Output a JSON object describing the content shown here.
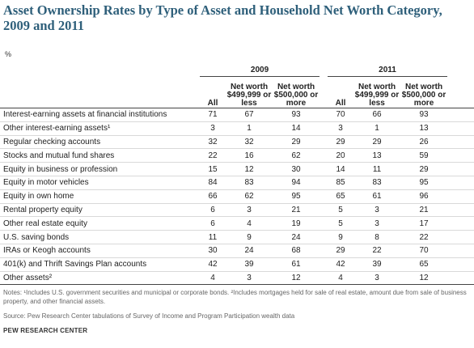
{
  "title": "Asset Ownership Rates by Type of Asset and Household Net Worth Category, 2009 and 2011",
  "unit": "%",
  "years": [
    "2009",
    "2011"
  ],
  "columns": [
    "All",
    "Net worth $499,999 or less",
    "Net worth $500,000 or more"
  ],
  "rows": [
    {
      "label": "Interest-earning assets at financial institutions",
      "values": [
        "71",
        "67",
        "93",
        "70",
        "66",
        "93"
      ]
    },
    {
      "label": "Other interest-earning assets¹",
      "values": [
        "3",
        "1",
        "14",
        "3",
        "1",
        "13"
      ]
    },
    {
      "label": "Regular checking accounts",
      "values": [
        "32",
        "32",
        "29",
        "29",
        "29",
        "26"
      ]
    },
    {
      "label": "Stocks and mutual fund shares",
      "values": [
        "22",
        "16",
        "62",
        "20",
        "13",
        "59"
      ]
    },
    {
      "label": "Equity in business or profession",
      "values": [
        "15",
        "12",
        "30",
        "14",
        "11",
        "29"
      ]
    },
    {
      "label": "Equity in motor vehicles",
      "values": [
        "84",
        "83",
        "94",
        "85",
        "83",
        "95"
      ]
    },
    {
      "label": "Equity in own home",
      "values": [
        "66",
        "62",
        "95",
        "65",
        "61",
        "96"
      ]
    },
    {
      "label": "Rental property equity",
      "values": [
        "6",
        "3",
        "21",
        "5",
        "3",
        "21"
      ]
    },
    {
      "label": "Other real estate equity",
      "values": [
        "6",
        "4",
        "19",
        "5",
        "3",
        "17"
      ]
    },
    {
      "label": "U.S. saving bonds",
      "values": [
        "11",
        "9",
        "24",
        "9",
        "8",
        "22"
      ]
    },
    {
      "label": "IRAs or Keogh accounts",
      "values": [
        "30",
        "24",
        "68",
        "29",
        "22",
        "70"
      ]
    },
    {
      "label": "401(k) and Thrift Savings Plan accounts",
      "values": [
        "42",
        "39",
        "61",
        "42",
        "39",
        "65"
      ]
    },
    {
      "label": "Other assets²",
      "values": [
        "4",
        "3",
        "12",
        "4",
        "3",
        "12"
      ]
    }
  ],
  "notes": "Notes: ¹Includes U.S. government securities and municipal or corporate bonds. ²Includes mortgages held for sale of real estate, amount due from sale of business property, and other financial assets.",
  "source": "Source: Pew Research Center tabulations of Survey of Income and Program Participation wealth data",
  "org": "PEW RESEARCH CENTER"
}
